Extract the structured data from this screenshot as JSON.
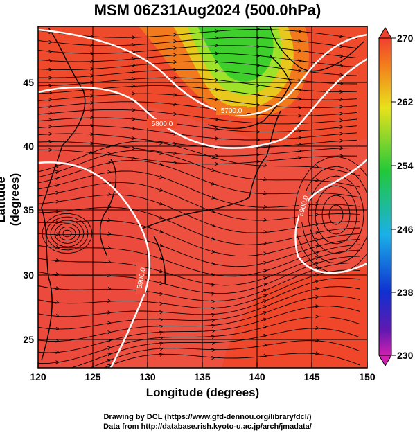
{
  "title": "MSM 06Z31Aug2024 (500.0hPa)",
  "x_axis_label": "Longitude (degrees)",
  "y_axis_label": "Latitude  (degrees)",
  "x_ticks": [
    "120",
    "125",
    "130",
    "135",
    "140",
    "145",
    "150"
  ],
  "y_ticks": [
    "25",
    "30",
    "35",
    "40",
    "45"
  ],
  "colorbar_ticks": [
    "270",
    "262",
    "254",
    "246",
    "238",
    "230"
  ],
  "contour_labels": [
    "5700.0",
    "5800.0",
    "5900.0",
    "5900.0",
    "5900.0"
  ],
  "credits": {
    "line1": "Drawing by DCL (https://www.gfd-dennou.org/library/dcl/)",
    "line2": "Data from http://database.rish.kyoto-u.ac.jp/arch/jmadata/"
  },
  "colors": {
    "warm": "#ee5040",
    "hot": "#f03a22",
    "orange": "#f37a1c",
    "yellow": "#e8e21c",
    "green": "#3fcf2c",
    "contour": "#ffffff"
  }
}
